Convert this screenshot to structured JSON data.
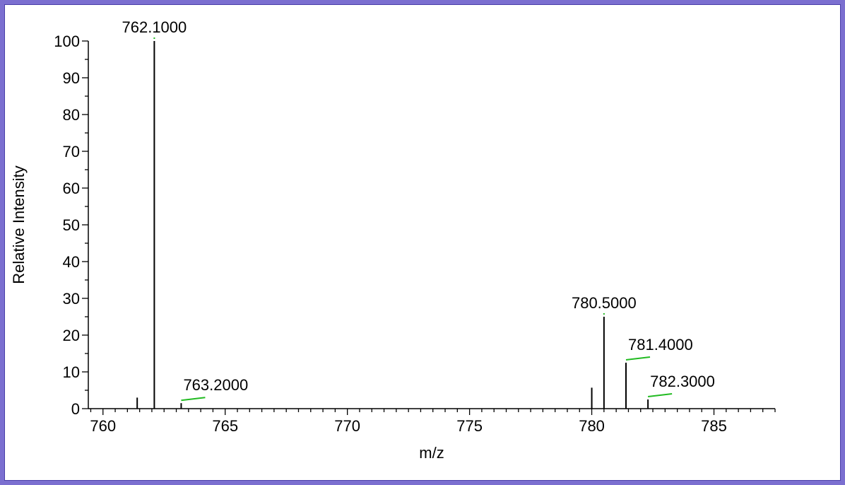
{
  "chart_data": {
    "type": "bar",
    "xlabel": "m/z",
    "ylabel": "Relative Intensity",
    "xlim": [
      759.4,
      787.5
    ],
    "ylim": [
      0,
      100
    ],
    "xticks": [
      760,
      765,
      770,
      775,
      780,
      785
    ],
    "yticks": [
      0,
      10,
      20,
      30,
      40,
      50,
      60,
      70,
      80,
      90,
      100
    ],
    "peaks": [
      {
        "mz": 761.4,
        "intensity": 3.0
      },
      {
        "mz": 762.1,
        "intensity": 100
      },
      {
        "mz": 763.2,
        "intensity": 1.5
      },
      {
        "mz": 780.0,
        "intensity": 5.7
      },
      {
        "mz": 780.5,
        "intensity": 25.0
      },
      {
        "mz": 781.4,
        "intensity": 12.5
      },
      {
        "mz": 782.3,
        "intensity": 2.5
      }
    ],
    "annotations": [
      {
        "label": "762.1000",
        "mz": 762.1,
        "intensity": 100
      },
      {
        "label": "763.2000",
        "mz": 763.2,
        "intensity": 1.5
      },
      {
        "label": "780.5000",
        "mz": 780.5,
        "intensity": 25.0
      },
      {
        "label": "781.4000",
        "mz": 781.4,
        "intensity": 12.5
      },
      {
        "label": "782.3000",
        "mz": 782.3,
        "intensity": 2.5
      }
    ],
    "colors": {
      "peak": "#000000",
      "leader": "#22bb22",
      "frame": "#7b6fd0"
    }
  }
}
